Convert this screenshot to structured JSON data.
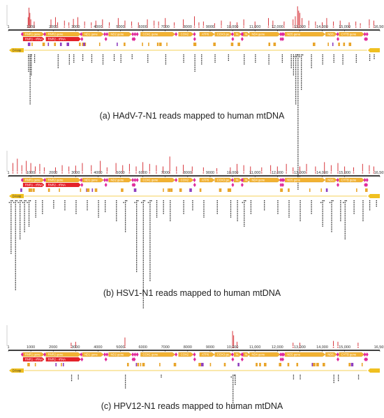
{
  "panels": [
    {
      "id": "a",
      "caption": "(a) HAdV-7-N1 reads mapped to human mtDNA",
      "top": 5,
      "coverage": [
        [
          880,
          20
        ],
        [
          920,
          42
        ],
        [
          960,
          30
        ],
        [
          1000,
          15
        ],
        [
          1150,
          10
        ],
        [
          1900,
          15
        ],
        [
          2100,
          20
        ],
        [
          2200,
          8
        ],
        [
          2500,
          12
        ],
        [
          2700,
          8
        ],
        [
          2900,
          16
        ],
        [
          3100,
          20
        ],
        [
          3400,
          10
        ],
        [
          3700,
          8
        ],
        [
          3900,
          12
        ],
        [
          4200,
          15
        ],
        [
          4500,
          8
        ],
        [
          4900,
          18
        ],
        [
          5200,
          12
        ],
        [
          5500,
          10
        ],
        [
          5800,
          8
        ],
        [
          6200,
          15
        ],
        [
          6500,
          12
        ],
        [
          6700,
          10
        ],
        [
          7000,
          18
        ],
        [
          7400,
          8
        ],
        [
          7800,
          15
        ],
        [
          8300,
          22
        ],
        [
          8500,
          8
        ],
        [
          8700,
          10
        ],
        [
          9200,
          6
        ],
        [
          9500,
          12
        ],
        [
          9900,
          10
        ],
        [
          10200,
          8
        ],
        [
          10500,
          15
        ],
        [
          11000,
          10
        ],
        [
          11600,
          18
        ],
        [
          11800,
          12
        ],
        [
          12300,
          10
        ],
        [
          12700,
          15
        ],
        [
          12800,
          22
        ],
        [
          12900,
          45
        ],
        [
          12950,
          35
        ],
        [
          13000,
          30
        ],
        [
          13100,
          18
        ],
        [
          13400,
          12
        ],
        [
          13700,
          10
        ],
        [
          14000,
          8
        ],
        [
          14200,
          18
        ],
        [
          14500,
          10
        ],
        [
          14800,
          12
        ],
        [
          15200,
          8
        ],
        [
          15500,
          10
        ],
        [
          15700,
          6
        ],
        [
          16100,
          15
        ],
        [
          16300,
          12
        ]
      ],
      "reads": [
        [
          880,
          10
        ],
        [
          950,
          28
        ],
        [
          1000,
          12
        ],
        [
          1150,
          5
        ],
        [
          2200,
          8
        ],
        [
          2700,
          6
        ],
        [
          2900,
          5
        ],
        [
          3300,
          4
        ],
        [
          3700,
          5
        ],
        [
          4200,
          6
        ],
        [
          4700,
          4
        ],
        [
          5000,
          5
        ],
        [
          5500,
          3
        ],
        [
          6200,
          5
        ],
        [
          7000,
          6
        ],
        [
          7800,
          5
        ],
        [
          8300,
          10
        ],
        [
          8600,
          6
        ],
        [
          9200,
          5
        ],
        [
          9800,
          4
        ],
        [
          10500,
          6
        ],
        [
          11000,
          5
        ],
        [
          11600,
          6
        ],
        [
          12200,
          5
        ],
        [
          12600,
          8
        ],
        [
          12700,
          12
        ],
        [
          12800,
          28
        ],
        [
          12900,
          75
        ],
        [
          13050,
          20
        ],
        [
          13500,
          8
        ],
        [
          14000,
          6
        ],
        [
          14500,
          5
        ],
        [
          14900,
          6
        ],
        [
          15500,
          5
        ],
        [
          16100,
          4
        ],
        [
          16300,
          3
        ]
      ]
    },
    {
      "id": "b",
      "caption": "(b) HSV1-N1 reads mapped to human mtDNA",
      "top": 214,
      "coverage": [
        [
          200,
          20
        ],
        [
          400,
          30
        ],
        [
          600,
          15
        ],
        [
          800,
          25
        ],
        [
          1000,
          20
        ],
        [
          1200,
          12
        ],
        [
          1400,
          18
        ],
        [
          1600,
          10
        ],
        [
          2100,
          10
        ],
        [
          2400,
          15
        ],
        [
          2700,
          12
        ],
        [
          3000,
          14
        ],
        [
          3300,
          20
        ],
        [
          3700,
          15
        ],
        [
          4100,
          25
        ],
        [
          4400,
          10
        ],
        [
          4800,
          20
        ],
        [
          5100,
          15
        ],
        [
          5400,
          18
        ],
        [
          5700,
          12
        ],
        [
          6000,
          22
        ],
        [
          6300,
          18
        ],
        [
          6600,
          15
        ],
        [
          6900,
          12
        ],
        [
          7200,
          35
        ],
        [
          7500,
          12
        ],
        [
          7800,
          16
        ],
        [
          8200,
          12
        ],
        [
          8700,
          10
        ],
        [
          9300,
          8
        ],
        [
          9900,
          10
        ],
        [
          10200,
          18
        ],
        [
          10500,
          15
        ],
        [
          10800,
          12
        ],
        [
          11300,
          10
        ],
        [
          11700,
          15
        ],
        [
          12000,
          12
        ],
        [
          12400,
          18
        ],
        [
          12700,
          10
        ],
        [
          13000,
          12
        ],
        [
          13300,
          18
        ],
        [
          13700,
          12
        ],
        [
          14100,
          22
        ],
        [
          14400,
          15
        ],
        [
          14700,
          20
        ],
        [
          15000,
          12
        ],
        [
          15400,
          10
        ],
        [
          15800,
          18
        ],
        [
          16100,
          15
        ],
        [
          16300,
          12
        ]
      ],
      "reads": [
        [
          100,
          30
        ],
        [
          300,
          50
        ],
        [
          500,
          22
        ],
        [
          700,
          18
        ],
        [
          900,
          15
        ],
        [
          1200,
          10
        ],
        [
          1500,
          8
        ],
        [
          2000,
          5
        ],
        [
          2500,
          6
        ],
        [
          3000,
          8
        ],
        [
          3500,
          6
        ],
        [
          4000,
          10
        ],
        [
          4300,
          7
        ],
        [
          4800,
          12
        ],
        [
          5200,
          18
        ],
        [
          5700,
          40
        ],
        [
          6000,
          60
        ],
        [
          6300,
          45
        ],
        [
          6600,
          10
        ],
        [
          6900,
          8
        ],
        [
          7200,
          12
        ],
        [
          7800,
          8
        ],
        [
          8200,
          6
        ],
        [
          8700,
          10
        ],
        [
          9300,
          8
        ],
        [
          9900,
          10
        ],
        [
          10200,
          12
        ],
        [
          10500,
          15
        ],
        [
          10800,
          8
        ],
        [
          11400,
          6
        ],
        [
          12000,
          8
        ],
        [
          12500,
          10
        ],
        [
          13000,
          12
        ],
        [
          13500,
          8
        ],
        [
          14000,
          15
        ],
        [
          14400,
          18
        ],
        [
          14800,
          12
        ],
        [
          15000,
          22
        ],
        [
          15400,
          8
        ],
        [
          15800,
          12
        ],
        [
          16100,
          6
        ],
        [
          16400,
          4
        ]
      ]
    },
    {
      "id": "c",
      "caption": "(c) HPV12-N1 reads mapped to human mtDNA",
      "top": 464,
      "coverage": [
        [
          2800,
          8
        ],
        [
          3000,
          10
        ],
        [
          5200,
          20
        ],
        [
          10000,
          35
        ],
        [
          10050,
          25
        ],
        [
          10200,
          10
        ],
        [
          12700,
          8
        ],
        [
          13000,
          8
        ],
        [
          14500,
          12
        ],
        [
          14700,
          10
        ],
        [
          15600,
          8
        ]
      ],
      "reads": [
        [
          2800,
          4
        ],
        [
          3100,
          3
        ],
        [
          5200,
          8
        ],
        [
          6800,
          2
        ],
        [
          10000,
          18
        ],
        [
          10100,
          6
        ],
        [
          12700,
          3
        ],
        [
          13000,
          3
        ],
        [
          14500,
          5
        ],
        [
          14700,
          4
        ],
        [
          15600,
          3
        ]
      ]
    }
  ],
  "axis": {
    "max": 16569,
    "ticks": [
      "1",
      "1000",
      "2000",
      "3000",
      "4000",
      "5000",
      "6000",
      "7000",
      "8000",
      "9000",
      "10,000",
      "11,000",
      "12,000",
      "13,000",
      "14,000",
      "15,000",
      "16,569"
    ]
  },
  "genes": [
    {
      "label": "RNR1 gene",
      "start": 650,
      "end": 1600,
      "color": "#f2b233"
    },
    {
      "label": "RNR2 gene",
      "start": 1670,
      "end": 3230,
      "color": "#f2b233"
    },
    {
      "label": "ND1 gene",
      "start": 3300,
      "end": 4250,
      "color": "#f2b233"
    },
    {
      "label": "ND2 gene",
      "start": 4470,
      "end": 5500,
      "color": "#f2b233"
    },
    {
      "label": "COX1 gene",
      "start": 5900,
      "end": 7440,
      "color": "#f2b233"
    },
    {
      "label": "COX2",
      "start": 7590,
      "end": 8260,
      "color": "#f2b233"
    },
    {
      "label": "ATP6",
      "start": 8530,
      "end": 9200,
      "color": "#f2b233"
    },
    {
      "label": "COX3 ge...",
      "start": 9210,
      "end": 9990,
      "color": "#f2b233"
    },
    {
      "label": "N...",
      "start": 10060,
      "end": 10400,
      "color": "#f2b233"
    },
    {
      "label": "N...",
      "start": 10470,
      "end": 10760,
      "color": "#f2b233"
    },
    {
      "label": "ND4 gene",
      "start": 10760,
      "end": 12130,
      "color": "#f2b233"
    },
    {
      "label": "ND5 gene",
      "start": 12340,
      "end": 14140,
      "color": "#f2b233"
    },
    {
      "label": "ND6...",
      "start": 14150,
      "end": 14670,
      "color": "#f2b233"
    },
    {
      "label": "CYTB gene",
      "start": 14750,
      "end": 15880,
      "color": "#f2b233"
    }
  ],
  "rnas": [
    {
      "label": "RNR1 - rRNA",
      "start": 650,
      "end": 1600
    },
    {
      "label": "RNR2 - rRNA",
      "start": 1670,
      "end": 3230
    }
  ],
  "dloop_label": "D-loop",
  "colors": {
    "coverage": "#d3232a",
    "gene": "#f2b233",
    "rna": "#e4222a",
    "trna": "#e0289a",
    "feature_orange": "#e9a52a",
    "feature_purple": "#8f3fbf",
    "axis": "#000000",
    "dloop": "#f0c020",
    "reads": "#111111"
  }
}
